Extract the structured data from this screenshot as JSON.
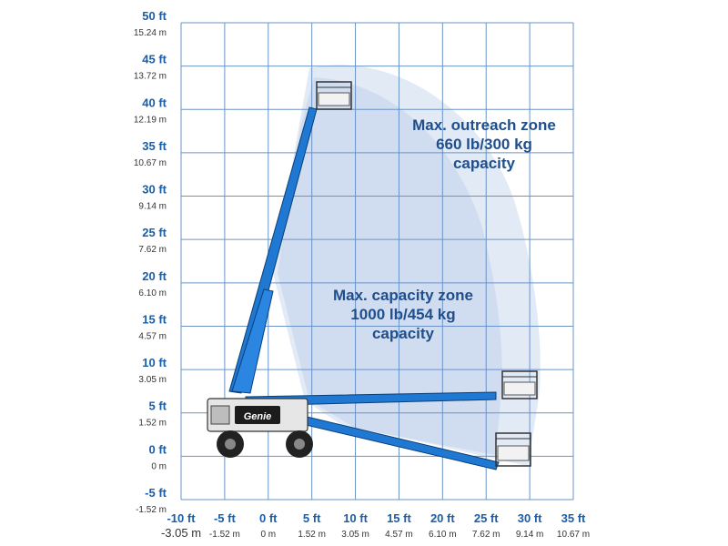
{
  "y_axis": {
    "ticks": [
      {
        "ft": "50 ft",
        "m": "15.24 m",
        "value": 50
      },
      {
        "ft": "45 ft",
        "m": "13.72 m",
        "value": 45
      },
      {
        "ft": "40 ft",
        "m": "12.19 m",
        "value": 40
      },
      {
        "ft": "35 ft",
        "m": "10.67 m",
        "value": 35
      },
      {
        "ft": "30 ft",
        "m": "9.14 m",
        "value": 30
      },
      {
        "ft": "25 ft",
        "m": "7.62 m",
        "value": 25
      },
      {
        "ft": "20 ft",
        "m": "6.10 m",
        "value": 20
      },
      {
        "ft": "15 ft",
        "m": "4.57 m",
        "value": 15
      },
      {
        "ft": "10 ft",
        "m": "3.05 m",
        "value": 10
      },
      {
        "ft": "5 ft",
        "m": "1.52 m",
        "value": 5
      },
      {
        "ft": "0 ft",
        "m": "0 m",
        "value": 0
      },
      {
        "ft": "-5 ft",
        "m": "-1.52 m",
        "value": -5
      }
    ]
  },
  "x_axis": {
    "ticks": [
      {
        "ft": "-10 ft",
        "m": "-3.05 m",
        "value": -10
      },
      {
        "ft": "-5 ft",
        "m": "-1.52 m",
        "value": -5
      },
      {
        "ft": "0 ft",
        "m": "0 m",
        "value": 0
      },
      {
        "ft": "5 ft",
        "m": "1.52 m",
        "value": 5
      },
      {
        "ft": "10 ft",
        "m": "3.05 m",
        "value": 10
      },
      {
        "ft": "15 ft",
        "m": "4.57 m",
        "value": 15
      },
      {
        "ft": "20 ft",
        "m": "6.10 m",
        "value": 20
      },
      {
        "ft": "25 ft",
        "m": "7.62 m",
        "value": 25
      },
      {
        "ft": "30 ft",
        "m": "9.14 m",
        "value": 30
      },
      {
        "ft": "35 ft",
        "m": "10.67 m",
        "value": 35
      }
    ]
  },
  "zones": {
    "outreach": {
      "lines": [
        "Max. outreach zone",
        "660 lb/300 kg",
        "capacity"
      ]
    },
    "capacity": {
      "lines": [
        "Max. capacity zone",
        "1000 lb/454 kg",
        "capacity"
      ]
    }
  },
  "machine": {
    "brand": "Genie"
  },
  "colors": {
    "grid": "#6b93c7",
    "boom": "#1f78d1",
    "zone_outer": "#dde7f4",
    "zone_inner": "#c7d8ee",
    "ft_text": "#1a5ea8",
    "zone_text": "#1f4e8c"
  }
}
